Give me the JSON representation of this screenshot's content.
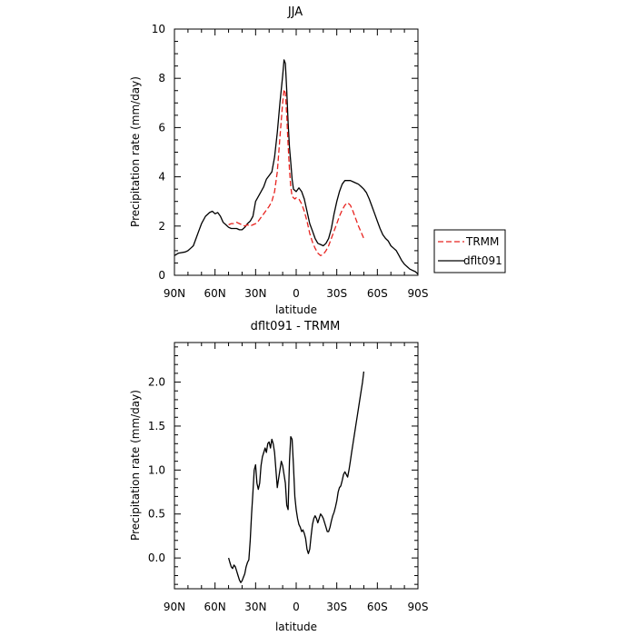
{
  "chart_data": [
    {
      "type": "line",
      "title": "JJA",
      "xlabel": "latitude",
      "ylabel": "Precipitation rate (mm/day)",
      "xlim": [
        90,
        -90
      ],
      "ylim": [
        0,
        10
      ],
      "xticks": [
        90,
        60,
        30,
        0,
        -30,
        -60,
        -90
      ],
      "xtick_labels": [
        "90N",
        "60N",
        "30N",
        "0",
        "30S",
        "60S",
        "90S"
      ],
      "yticks": [
        0,
        2,
        4,
        6,
        8,
        10
      ],
      "ytick_labels": [
        "0",
        "2",
        "4",
        "6",
        "8",
        "10"
      ],
      "grid": false,
      "legend": {
        "placement": "right",
        "entries": [
          {
            "label": "TRMM",
            "color": "#e8231f",
            "dash": "dashed"
          },
          {
            "label": "dflt091",
            "color": "#000000",
            "dash": "solid"
          }
        ]
      },
      "series": [
        {
          "name": "dflt091",
          "color": "#000000",
          "style": "solid",
          "points": [
            [
              90,
              0.8
            ],
            [
              87,
              0.9
            ],
            [
              82,
              0.95
            ],
            [
              80,
              1.0
            ],
            [
              78,
              1.1
            ],
            [
              76,
              1.2
            ],
            [
              74,
              1.5
            ],
            [
              72,
              1.8
            ],
            [
              70,
              2.1
            ],
            [
              67,
              2.4
            ],
            [
              64,
              2.55
            ],
            [
              62,
              2.6
            ],
            [
              60,
              2.5
            ],
            [
              58,
              2.55
            ],
            [
              56,
              2.4
            ],
            [
              54,
              2.15
            ],
            [
              52,
              2.05
            ],
            [
              50,
              1.95
            ],
            [
              48,
              1.9
            ],
            [
              46,
              1.9
            ],
            [
              44,
              1.9
            ],
            [
              42,
              1.85
            ],
            [
              40,
              1.85
            ],
            [
              38,
              1.95
            ],
            [
              36,
              2.1
            ],
            [
              34,
              2.2
            ],
            [
              32,
              2.4
            ],
            [
              30,
              3.0
            ],
            [
              28,
              3.2
            ],
            [
              26,
              3.4
            ],
            [
              24,
              3.6
            ],
            [
              22,
              3.9
            ],
            [
              20,
              4.05
            ],
            [
              18,
              4.2
            ],
            [
              16,
              4.8
            ],
            [
              14,
              5.8
            ],
            [
              12,
              7.0
            ],
            [
              10,
              8.1
            ],
            [
              9,
              8.75
            ],
            [
              8,
              8.6
            ],
            [
              7,
              7.5
            ],
            [
              6,
              6.2
            ],
            [
              5,
              5.2
            ],
            [
              4,
              4.6
            ],
            [
              3,
              3.9
            ],
            [
              2,
              3.5
            ],
            [
              1,
              3.45
            ],
            [
              0,
              3.4
            ],
            [
              -2,
              3.55
            ],
            [
              -4,
              3.4
            ],
            [
              -6,
              3.1
            ],
            [
              -8,
              2.6
            ],
            [
              -10,
              2.1
            ],
            [
              -12,
              1.8
            ],
            [
              -14,
              1.5
            ],
            [
              -16,
              1.3
            ],
            [
              -18,
              1.25
            ],
            [
              -20,
              1.2
            ],
            [
              -22,
              1.3
            ],
            [
              -24,
              1.5
            ],
            [
              -26,
              1.9
            ],
            [
              -28,
              2.5
            ],
            [
              -30,
              3.0
            ],
            [
              -32,
              3.4
            ],
            [
              -34,
              3.7
            ],
            [
              -36,
              3.85
            ],
            [
              -38,
              3.85
            ],
            [
              -40,
              3.85
            ],
            [
              -42,
              3.8
            ],
            [
              -44,
              3.75
            ],
            [
              -46,
              3.7
            ],
            [
              -48,
              3.6
            ],
            [
              -50,
              3.5
            ],
            [
              -52,
              3.35
            ],
            [
              -54,
              3.1
            ],
            [
              -56,
              2.8
            ],
            [
              -58,
              2.5
            ],
            [
              -60,
              2.2
            ],
            [
              -62,
              1.9
            ],
            [
              -64,
              1.65
            ],
            [
              -66,
              1.5
            ],
            [
              -68,
              1.4
            ],
            [
              -70,
              1.2
            ],
            [
              -72,
              1.1
            ],
            [
              -74,
              1.0
            ],
            [
              -76,
              0.8
            ],
            [
              -78,
              0.6
            ],
            [
              -80,
              0.45
            ],
            [
              -82,
              0.35
            ],
            [
              -84,
              0.25
            ],
            [
              -86,
              0.2
            ],
            [
              -88,
              0.15
            ],
            [
              -90,
              0.05
            ]
          ]
        },
        {
          "name": "TRMM",
          "color": "#e8231f",
          "style": "dashed",
          "points": [
            [
              50,
              2.05
            ],
            [
              48,
              2.1
            ],
            [
              46,
              2.1
            ],
            [
              44,
              2.15
            ],
            [
              42,
              2.1
            ],
            [
              40,
              2.05
            ],
            [
              38,
              2.0
            ],
            [
              36,
              2.05
            ],
            [
              34,
              2.0
            ],
            [
              32,
              2.05
            ],
            [
              30,
              2.1
            ],
            [
              28,
              2.2
            ],
            [
              26,
              2.35
            ],
            [
              24,
              2.5
            ],
            [
              22,
              2.65
            ],
            [
              20,
              2.8
            ],
            [
              18,
              3.0
            ],
            [
              16,
              3.4
            ],
            [
              14,
              4.2
            ],
            [
              12,
              5.6
            ],
            [
              10,
              7.0
            ],
            [
              9,
              7.55
            ],
            [
              8,
              7.4
            ],
            [
              7,
              6.5
            ],
            [
              6,
              5.3
            ],
            [
              5,
              4.3
            ],
            [
              4,
              3.6
            ],
            [
              3,
              3.2
            ],
            [
              2,
              3.15
            ],
            [
              1,
              3.1
            ],
            [
              0,
              3.15
            ],
            [
              -2,
              3.1
            ],
            [
              -4,
              2.9
            ],
            [
              -6,
              2.6
            ],
            [
              -8,
              2.2
            ],
            [
              -10,
              1.7
            ],
            [
              -12,
              1.35
            ],
            [
              -14,
              1.1
            ],
            [
              -16,
              0.9
            ],
            [
              -18,
              0.8
            ],
            [
              -20,
              0.85
            ],
            [
              -22,
              1.0
            ],
            [
              -24,
              1.2
            ],
            [
              -26,
              1.5
            ],
            [
              -28,
              1.8
            ],
            [
              -30,
              2.1
            ],
            [
              -32,
              2.4
            ],
            [
              -34,
              2.65
            ],
            [
              -36,
              2.85
            ],
            [
              -38,
              2.95
            ],
            [
              -40,
              2.85
            ],
            [
              -42,
              2.6
            ],
            [
              -44,
              2.3
            ],
            [
              -46,
              2.0
            ],
            [
              -48,
              1.75
            ],
            [
              -50,
              1.5
            ]
          ]
        }
      ]
    },
    {
      "type": "line",
      "title": "dflt091 - TRMM",
      "xlabel": "latitude",
      "ylabel": "Precipitation rate (mm/day)",
      "xlim": [
        90,
        -90
      ],
      "ylim": [
        -0.35,
        2.45
      ],
      "xticks": [
        90,
        60,
        30,
        0,
        -30,
        -60,
        -90
      ],
      "xtick_labels": [
        "90N",
        "60N",
        "30N",
        "0",
        "30S",
        "60S",
        "90S"
      ],
      "yticks": [
        0.0,
        0.5,
        1.0,
        1.5,
        2.0
      ],
      "ytick_labels": [
        "0.0",
        "0.5",
        "1.0",
        "1.5",
        "2.0"
      ],
      "grid": false,
      "series": [
        {
          "color": "#000000",
          "style": "solid",
          "points": [
            [
              50,
              0.0
            ],
            [
              49,
              -0.05
            ],
            [
              48,
              -0.1
            ],
            [
              47,
              -0.12
            ],
            [
              46,
              -0.08
            ],
            [
              45,
              -0.1
            ],
            [
              44,
              -0.15
            ],
            [
              43,
              -0.2
            ],
            [
              42,
              -0.25
            ],
            [
              41,
              -0.28
            ],
            [
              40,
              -0.26
            ],
            [
              39,
              -0.22
            ],
            [
              38,
              -0.18
            ],
            [
              37,
              -0.1
            ],
            [
              36,
              -0.05
            ],
            [
              35,
              -0.02
            ],
            [
              34,
              0.2
            ],
            [
              33,
              0.5
            ],
            [
              32,
              0.75
            ],
            [
              31,
              1.0
            ],
            [
              30,
              1.06
            ],
            [
              29,
              0.85
            ],
            [
              28,
              0.78
            ],
            [
              27,
              0.85
            ],
            [
              26,
              1.05
            ],
            [
              25,
              1.15
            ],
            [
              24,
              1.2
            ],
            [
              23,
              1.25
            ],
            [
              22,
              1.2
            ],
            [
              21,
              1.3
            ],
            [
              20,
              1.32
            ],
            [
              19,
              1.25
            ],
            [
              18,
              1.35
            ],
            [
              17,
              1.3
            ],
            [
              16,
              1.2
            ],
            [
              15,
              1.0
            ],
            [
              14,
              0.8
            ],
            [
              13,
              0.9
            ],
            [
              12,
              1.0
            ],
            [
              11,
              1.1
            ],
            [
              10,
              1.05
            ],
            [
              9,
              0.95
            ],
            [
              8,
              0.85
            ],
            [
              7,
              0.6
            ],
            [
              6,
              0.55
            ],
            [
              5,
              1.1
            ],
            [
              4,
              1.38
            ],
            [
              3,
              1.35
            ],
            [
              2,
              1.05
            ],
            [
              1,
              0.7
            ],
            [
              0,
              0.55
            ],
            [
              -1,
              0.45
            ],
            [
              -2,
              0.38
            ],
            [
              -3,
              0.35
            ],
            [
              -4,
              0.3
            ],
            [
              -5,
              0.32
            ],
            [
              -6,
              0.28
            ],
            [
              -7,
              0.22
            ],
            [
              -8,
              0.1
            ],
            [
              -9,
              0.05
            ],
            [
              -10,
              0.1
            ],
            [
              -11,
              0.25
            ],
            [
              -12,
              0.38
            ],
            [
              -13,
              0.45
            ],
            [
              -14,
              0.48
            ],
            [
              -15,
              0.45
            ],
            [
              -16,
              0.4
            ],
            [
              -17,
              0.45
            ],
            [
              -18,
              0.5
            ],
            [
              -19,
              0.48
            ],
            [
              -20,
              0.45
            ],
            [
              -21,
              0.4
            ],
            [
              -22,
              0.35
            ],
            [
              -23,
              0.3
            ],
            [
              -24,
              0.3
            ],
            [
              -25,
              0.35
            ],
            [
              -26,
              0.42
            ],
            [
              -27,
              0.48
            ],
            [
              -28,
              0.52
            ],
            [
              -29,
              0.58
            ],
            [
              -30,
              0.65
            ],
            [
              -31,
              0.75
            ],
            [
              -32,
              0.8
            ],
            [
              -33,
              0.82
            ],
            [
              -34,
              0.88
            ],
            [
              -35,
              0.95
            ],
            [
              -36,
              0.98
            ],
            [
              -37,
              0.95
            ],
            [
              -38,
              0.92
            ],
            [
              -39,
              1.0
            ],
            [
              -40,
              1.1
            ],
            [
              -41,
              1.2
            ],
            [
              -42,
              1.3
            ],
            [
              -43,
              1.4
            ],
            [
              -44,
              1.5
            ],
            [
              -45,
              1.6
            ],
            [
              -46,
              1.7
            ],
            [
              -47,
              1.8
            ],
            [
              -48,
              1.9
            ],
            [
              -49,
              2.0
            ],
            [
              -50,
              2.12
            ]
          ]
        }
      ]
    }
  ]
}
